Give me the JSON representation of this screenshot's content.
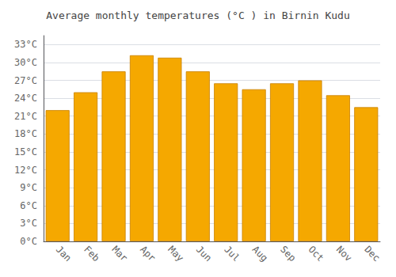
{
  "chart_data": {
    "type": "bar",
    "title": "Average monthly temperatures (°C ) in Birnin Kudu",
    "categories": [
      "Jan",
      "Feb",
      "Mar",
      "Apr",
      "May",
      "Jun",
      "Jul",
      "Aug",
      "Sep",
      "Oct",
      "Nov",
      "Dec"
    ],
    "values": [
      22.0,
      25.0,
      28.5,
      31.2,
      30.8,
      28.5,
      26.5,
      25.5,
      26.5,
      27.0,
      24.5,
      22.5
    ],
    "color": "#F5A800",
    "ylim": [
      0,
      34.5
    ],
    "yticks": [
      {
        "value": 0,
        "label": "0°C"
      },
      {
        "value": 3,
        "label": "3°C"
      },
      {
        "value": 6,
        "label": "6°C"
      },
      {
        "value": 9,
        "label": "9°C"
      },
      {
        "value": 12,
        "label": "12°C"
      },
      {
        "value": 15,
        "label": "15°C"
      },
      {
        "value": 18,
        "label": "18°C"
      },
      {
        "value": 21,
        "label": "21°C"
      },
      {
        "value": 24,
        "label": "24°C"
      },
      {
        "value": 27,
        "label": "27°C"
      },
      {
        "value": 30,
        "label": "30°C"
      },
      {
        "value": 33,
        "label": "33°C"
      }
    ],
    "grid": true
  }
}
